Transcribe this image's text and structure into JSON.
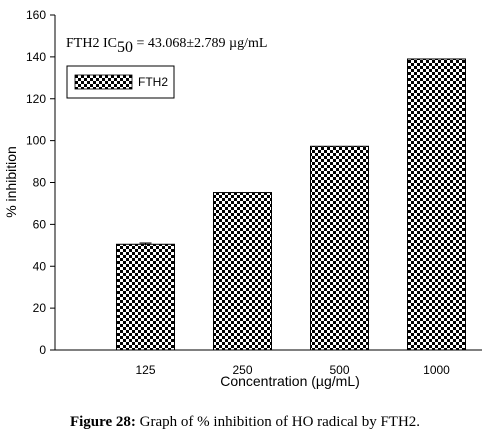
{
  "chart_data": {
    "type": "bar",
    "categories": [
      "125",
      "250",
      "500",
      "1000"
    ],
    "values": [
      50.5,
      75.2,
      97.3,
      139.0
    ],
    "error": [
      0.6,
      0.0,
      0.0,
      0.0
    ],
    "xlabel": "Concentration (µg/mL)",
    "ylabel": "% inhibition",
    "ylim": [
      0,
      160
    ],
    "yticks": [
      0,
      20,
      40,
      60,
      80,
      100,
      120,
      140,
      160
    ],
    "legend": {
      "entries": [
        "FTH2"
      ],
      "placement": "top-left"
    },
    "annotation": {
      "prefix": "FTH2 IC",
      "subscript": "50",
      "value": " = 43.068±2.789 µg/mL"
    },
    "bar_pattern": "checkerboard",
    "grid": false
  },
  "caption": {
    "label": "Figure 28:",
    "text": " Graph of % inhibition of HO radical by FTH2."
  }
}
